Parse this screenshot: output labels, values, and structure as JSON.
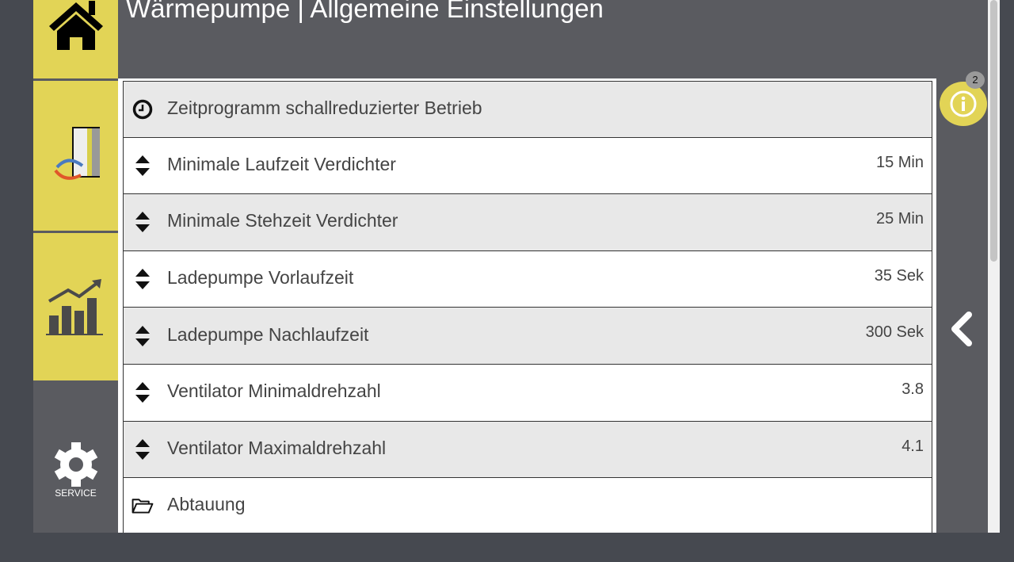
{
  "header": {
    "title": "Wärmepumpe | Allgemeine Einstellungen"
  },
  "sidebar": {
    "service_label": "SERVICE"
  },
  "info": {
    "badge_count": "2"
  },
  "rows": [
    {
      "icon": "clock-icon",
      "label": "Zeitprogramm schallreduzierter Betrieb",
      "value": ""
    },
    {
      "icon": "sort-icon",
      "label": "Minimale Laufzeit Verdichter",
      "value": "15 Min"
    },
    {
      "icon": "sort-icon",
      "label": "Minimale Stehzeit Verdichter",
      "value": "25 Min"
    },
    {
      "icon": "sort-icon",
      "label": "Ladepumpe Vorlaufzeit",
      "value": "35 Sek"
    },
    {
      "icon": "sort-icon",
      "label": "Ladepumpe Nachlaufzeit",
      "value": "300 Sek"
    },
    {
      "icon": "sort-icon",
      "label": "Ventilator Minimaldrehzahl",
      "value": "3.8"
    },
    {
      "icon": "sort-icon",
      "label": "Ventilator Maximaldrehzahl",
      "value": "4.1"
    },
    {
      "icon": "folder-open-icon",
      "label": "Abtauung",
      "value": ""
    }
  ],
  "colors": {
    "accent": "#e2d456",
    "panel": "#5a5b60",
    "background": "#464950"
  }
}
